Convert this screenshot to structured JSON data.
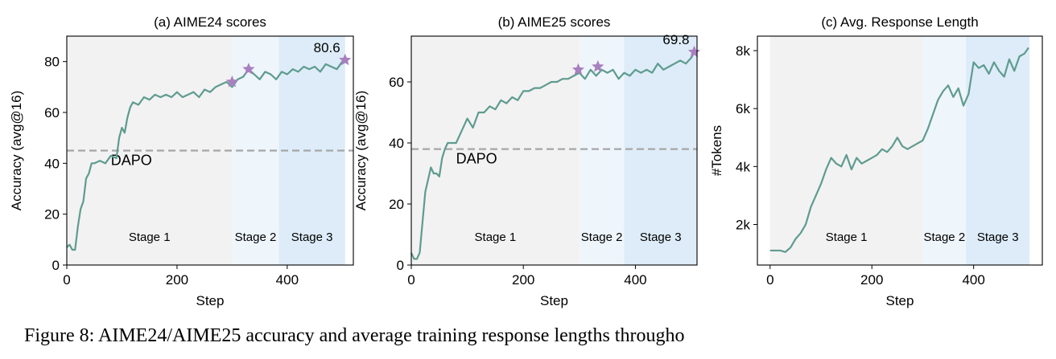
{
  "colors": {
    "line": "#5f9b8f",
    "star": "#a87fbf",
    "baseline": "#a6a6a6",
    "stage1_bg": "#f2f2f2",
    "stage2_bg": "#eef5fb",
    "stage3_bg": "#ddecf8"
  },
  "caption": "Figure 8: AIME24/AIME25 accuracy and average training response lengths througho",
  "chart_data": [
    {
      "type": "line",
      "title": "(a) AIME24 scores",
      "xlabel": "Step",
      "ylabel": "Accuracy (avg@16)",
      "xlim": [
        0,
        520
      ],
      "ylim": [
        0,
        90
      ],
      "xticks": [
        0,
        200,
        400
      ],
      "xtick_labels": [
        "0",
        "200",
        "400"
      ],
      "yticks": [
        0,
        20,
        40,
        60,
        80
      ],
      "ytick_labels": [
        "0",
        "20",
        "40",
        "60",
        "80"
      ],
      "stages": [
        {
          "label": "Stage 1",
          "x0": 0,
          "x1": 300
        },
        {
          "label": "Stage 2",
          "x0": 300,
          "x1": 385
        },
        {
          "label": "Stage 3",
          "x0": 385,
          "x1": 505
        }
      ],
      "baseline": {
        "label": "DAPO",
        "value": 45
      },
      "stars": [
        {
          "x": 300,
          "y": 72
        },
        {
          "x": 330,
          "y": 77
        },
        {
          "x": 505,
          "y": 80.6
        }
      ],
      "final_label": "80.6",
      "series": [
        {
          "x": [
            0,
            5,
            10,
            15,
            20,
            25,
            30,
            35,
            40,
            45,
            50,
            60,
            70,
            80,
            90,
            95,
            100,
            105,
            110,
            115,
            120,
            130,
            140,
            150,
            160,
            170,
            180,
            190,
            200,
            210,
            220,
            230,
            240,
            250,
            260,
            270,
            280,
            290,
            300,
            310,
            320,
            330,
            340,
            350,
            360,
            370,
            380,
            390,
            400,
            410,
            420,
            430,
            440,
            450,
            460,
            470,
            480,
            490,
            500,
            505
          ],
          "y": [
            7,
            8,
            6,
            6,
            15,
            22,
            25,
            34,
            36,
            40,
            40,
            41,
            40,
            43,
            42,
            50,
            54,
            52,
            58,
            62,
            64,
            63,
            66,
            65,
            67,
            66,
            67,
            66,
            68,
            66,
            67,
            68,
            66,
            69,
            68,
            70,
            71,
            72,
            70,
            73,
            74,
            77,
            75,
            73,
            76,
            75,
            73,
            76,
            75,
            77,
            76,
            78,
            77,
            78,
            76,
            79,
            78,
            77,
            80,
            80.6
          ]
        }
      ]
    },
    {
      "type": "line",
      "title": "(b) AIME25 scores",
      "xlabel": "Step",
      "ylabel": "Accuracy (avg@16)",
      "xlim": [
        0,
        510
      ],
      "ylim": [
        0,
        75
      ],
      "xticks": [
        0,
        200,
        400
      ],
      "xtick_labels": [
        "0",
        "200",
        "400"
      ],
      "yticks": [
        0,
        20,
        40,
        60
      ],
      "ytick_labels": [
        "0",
        "20",
        "40",
        "60"
      ],
      "stages": [
        {
          "label": "Stage 1",
          "x0": 0,
          "x1": 300
        },
        {
          "label": "Stage 2",
          "x0": 300,
          "x1": 380
        },
        {
          "label": "Stage 3",
          "x0": 380,
          "x1": 510
        }
      ],
      "baseline": {
        "label": "DAPO",
        "value": 38
      },
      "stars": [
        {
          "x": 298,
          "y": 64
        },
        {
          "x": 333,
          "y": 65
        },
        {
          "x": 505,
          "y": 69.8
        }
      ],
      "final_label": "69.8",
      "series": [
        {
          "x": [
            0,
            5,
            10,
            15,
            20,
            25,
            30,
            35,
            40,
            45,
            50,
            55,
            60,
            65,
            70,
            80,
            90,
            100,
            110,
            120,
            130,
            140,
            150,
            160,
            170,
            180,
            190,
            200,
            210,
            220,
            230,
            240,
            250,
            260,
            270,
            280,
            290,
            300,
            310,
            320,
            330,
            340,
            350,
            360,
            370,
            380,
            390,
            400,
            410,
            420,
            430,
            440,
            450,
            460,
            470,
            480,
            490,
            500,
            505
          ],
          "y": [
            4,
            2,
            2,
            4,
            14,
            24,
            28,
            32,
            30,
            30,
            29,
            35,
            38,
            40,
            40,
            40,
            44,
            48,
            45,
            50,
            50,
            52,
            51,
            54,
            53,
            55,
            54,
            57,
            57,
            58,
            58,
            59,
            60,
            60,
            61,
            61,
            62,
            63,
            61,
            64,
            62,
            64,
            63,
            64,
            61,
            63,
            62,
            64,
            63,
            64,
            63,
            66,
            64,
            65,
            66,
            67,
            66,
            68,
            69.8
          ]
        }
      ]
    },
    {
      "type": "line",
      "title": "(c) Avg. Response Length",
      "xlabel": "Step",
      "ylabel": "#Tokens",
      "xlim": [
        -25,
        535
      ],
      "ylim": [
        600,
        8500
      ],
      "xticks": [
        0,
        200,
        400
      ],
      "xtick_labels": [
        "0",
        "200",
        "400"
      ],
      "yticks": [
        2000,
        4000,
        6000,
        8000
      ],
      "ytick_labels": [
        "2k",
        "4k",
        "6k",
        "8k"
      ],
      "stages": [
        {
          "label": "Stage 1",
          "x0": 0,
          "x1": 300
        },
        {
          "label": "Stage 2",
          "x0": 300,
          "x1": 385
        },
        {
          "label": "Stage 3",
          "x0": 385,
          "x1": 510
        }
      ],
      "series": [
        {
          "x": [
            0,
            10,
            20,
            30,
            40,
            50,
            60,
            70,
            80,
            90,
            100,
            110,
            120,
            130,
            140,
            150,
            160,
            170,
            180,
            190,
            200,
            210,
            220,
            230,
            240,
            250,
            260,
            270,
            280,
            290,
            300,
            310,
            320,
            330,
            340,
            350,
            360,
            370,
            380,
            390,
            400,
            410,
            420,
            430,
            440,
            450,
            460,
            470,
            480,
            490,
            500,
            508
          ],
          "y": [
            1100,
            1100,
            1100,
            1050,
            1200,
            1500,
            1700,
            2000,
            2600,
            3000,
            3400,
            3900,
            4300,
            4100,
            4000,
            4400,
            3900,
            4300,
            4100,
            4200,
            4300,
            4400,
            4600,
            4500,
            4700,
            5000,
            4700,
            4600,
            4700,
            4800,
            4900,
            5300,
            5800,
            6300,
            6600,
            6800,
            6400,
            6700,
            6100,
            6500,
            7600,
            7400,
            7500,
            7200,
            7600,
            7300,
            7100,
            7700,
            7300,
            7800,
            7900,
            8100
          ]
        }
      ]
    }
  ]
}
